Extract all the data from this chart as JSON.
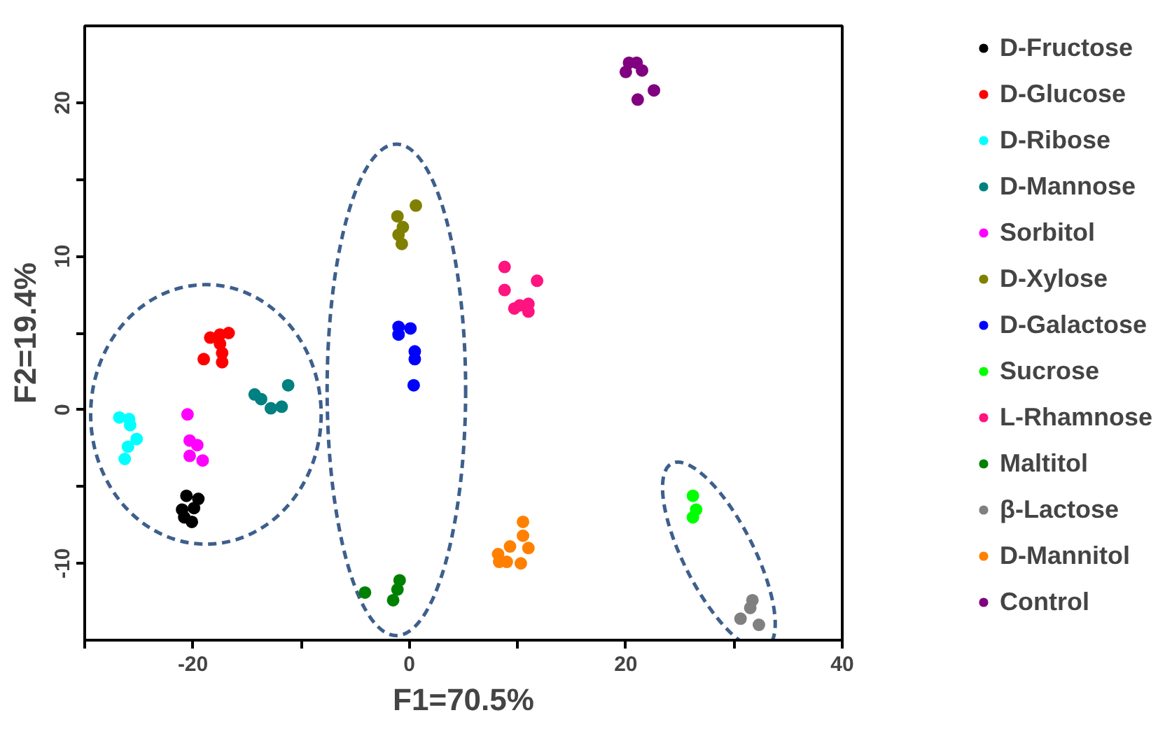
{
  "chart_data": {
    "type": "scatter",
    "xlabel": "F1=70.5%",
    "ylabel": "F2=19.4%",
    "xlim": [
      -30,
      40
    ],
    "ylim": [
      -15,
      25
    ],
    "xticks": [
      {
        "value": -30,
        "label": null
      },
      -20,
      {
        "value": -10,
        "label": null
      },
      0,
      {
        "value": 10,
        "label": null
      },
      20,
      {
        "value": 30,
        "label": null
      },
      40
    ],
    "yticks": [
      -10,
      {
        "value": -5,
        "label": null
      },
      0,
      {
        "value": 5,
        "label": null
      },
      10,
      {
        "value": 15,
        "label": null
      },
      20
    ],
    "grid": false,
    "legend": "right",
    "marker": "circle",
    "series": [
      {
        "name": "D-Fructose",
        "color": "#000000",
        "x": [
          -20.6,
          -19.5,
          -21.0,
          -19.9,
          -20.8,
          -20.1
        ],
        "values": [
          -5.6,
          -5.8,
          -6.5,
          -6.4,
          -7.0,
          -7.3
        ]
      },
      {
        "name": "D-Glucose",
        "color": "#ff0000",
        "x": [
          -18.4,
          -17.5,
          -16.7,
          -17.5,
          -19.0,
          -17.3,
          -17.3
        ],
        "values": [
          4.7,
          4.9,
          5.0,
          4.3,
          3.3,
          3.7,
          3.1
        ]
      },
      {
        "name": "D-Ribose",
        "color": "#00ffff",
        "x": [
          -26.8,
          -25.9,
          -25.8,
          -25.2,
          -26.0,
          -26.3
        ],
        "values": [
          -0.5,
          -0.6,
          -1.0,
          -1.9,
          -2.4,
          -3.2
        ]
      },
      {
        "name": "D-Mannose",
        "color": "#008080",
        "x": [
          -14.3,
          -13.7,
          -12.8,
          -11.8,
          -11.2
        ],
        "values": [
          1.0,
          0.7,
          0.1,
          0.2,
          1.6
        ]
      },
      {
        "name": "Sorbitol",
        "color": "#ff00ff",
        "x": [
          -20.5,
          -20.3,
          -19.6,
          -20.3,
          -19.1
        ],
        "values": [
          -0.3,
          -2.0,
          -2.3,
          -3.0,
          -3.3
        ]
      },
      {
        "name": "D-Xylose",
        "color": "#808000",
        "x": [
          0.6,
          -1.1,
          -0.6,
          -1.0,
          -0.7
        ],
        "values": [
          13.3,
          12.6,
          11.9,
          11.4,
          10.8
        ]
      },
      {
        "name": "D-Galactose",
        "color": "#0000ff",
        "x": [
          -1.0,
          0.1,
          -1.0,
          0.5,
          0.5,
          0.4
        ],
        "values": [
          5.4,
          5.3,
          4.9,
          3.8,
          3.3,
          1.6
        ]
      },
      {
        "name": "Sucrose",
        "color": "#00ff00",
        "x": [
          26.2,
          26.5,
          26.2
        ],
        "values": [
          -5.6,
          -6.5,
          -7.0
        ]
      },
      {
        "name": "L-Rhamnose",
        "color": "#ff1480",
        "x": [
          8.8,
          8.8,
          11.8,
          9.7,
          10.2,
          11.0,
          11.0
        ],
        "values": [
          9.3,
          7.8,
          8.4,
          6.6,
          6.8,
          6.9,
          6.4
        ]
      },
      {
        "name": "Maltitol",
        "color": "#008000",
        "x": [
          -4.1,
          -0.9,
          -1.1,
          -1.5
        ],
        "values": [
          -11.9,
          -11.1,
          -11.7,
          -12.4
        ]
      },
      {
        "name": "β-Lactose",
        "color": "#808080",
        "x": [
          31.7,
          31.5,
          30.6,
          32.3
        ],
        "values": [
          -12.4,
          -12.9,
          -13.6,
          -14.0
        ]
      },
      {
        "name": "D-Mannitol",
        "color": "#ff8000",
        "x": [
          10.5,
          10.5,
          9.3,
          11.0,
          8.2,
          8.3,
          9.0,
          10.3
        ],
        "values": [
          -7.3,
          -8.2,
          -8.9,
          -9.0,
          -9.4,
          -9.9,
          -9.9,
          -10.0
        ]
      },
      {
        "name": "Control",
        "color": "#800080",
        "x": [
          20.3,
          21.0,
          21.5,
          20.0,
          22.6,
          21.1
        ],
        "values": [
          22.6,
          22.6,
          22.1,
          22.0,
          20.8,
          20.2
        ]
      }
    ]
  }
}
